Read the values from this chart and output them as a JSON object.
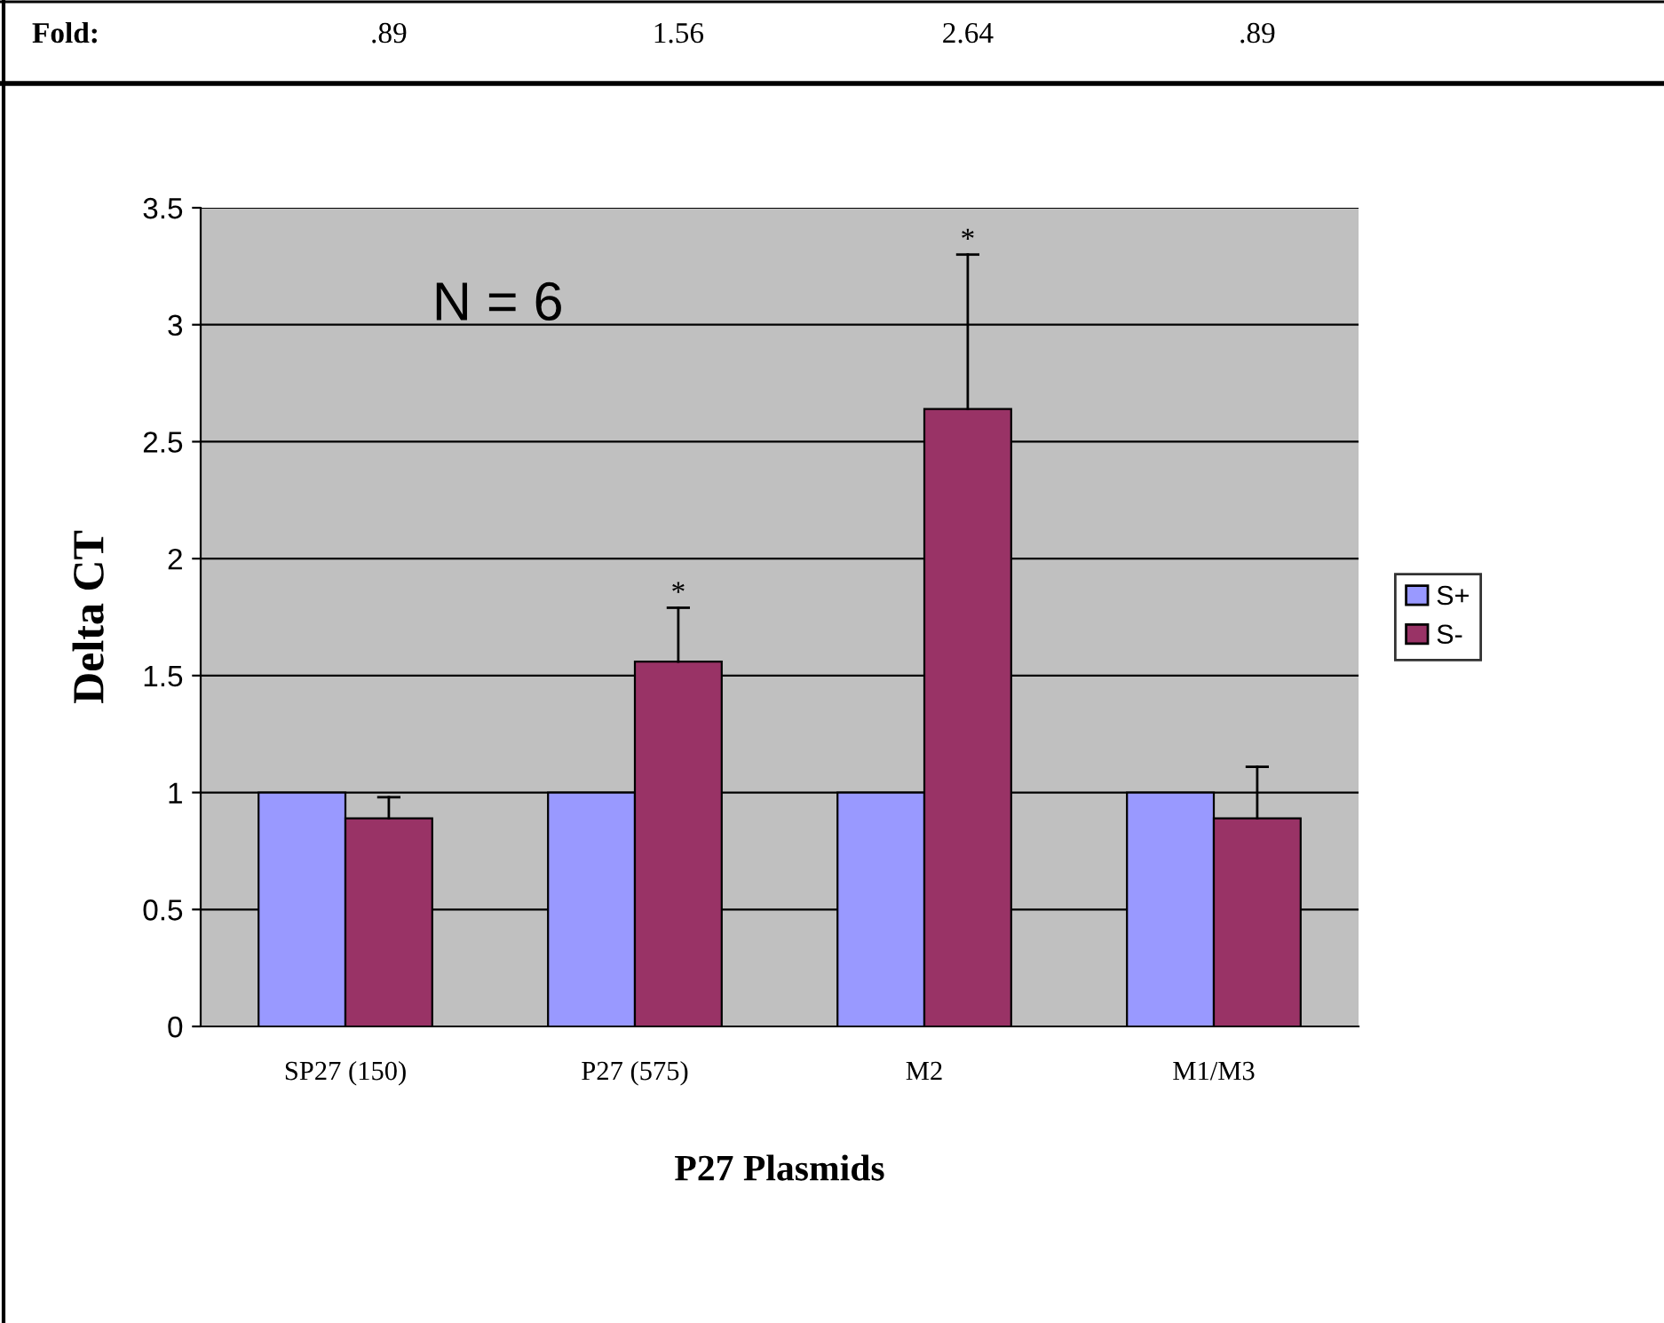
{
  "chart_data": {
    "type": "bar",
    "categories": [
      "SP27 (150)",
      "P27 (575)",
      "M2",
      "M1/M3"
    ],
    "series": [
      {
        "name": "S+",
        "color": "#9999ff",
        "values": [
          1,
          1,
          1,
          1
        ]
      },
      {
        "name": "S-",
        "color": "#993366",
        "values": [
          0.89,
          1.56,
          2.64,
          0.89
        ],
        "errors": [
          [
            0.89,
            0.98
          ],
          [
            1.56,
            1.79
          ],
          [
            2.64,
            3.3
          ],
          [
            0.89,
            1.11
          ]
        ],
        "value_labels": [
          ".89",
          "1.56",
          "2.64",
          ".89"
        ]
      }
    ],
    "xlabel": "P27 Plasmids",
    "ylabel": "Delta CT",
    "ylim": [
      0,
      3.5
    ],
    "yticks": [
      0,
      0.5,
      1,
      1.5,
      2,
      2.5,
      3,
      3.5
    ],
    "grid": "y",
    "legend": "right",
    "annotations": [
      "Fold:",
      "N = 6",
      "*",
      "*"
    ]
  }
}
